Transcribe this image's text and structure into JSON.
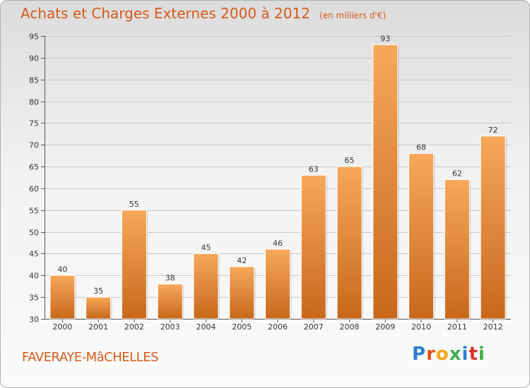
{
  "title": "Achats et Charges Externes 2000 à 2012",
  "subtitle": "(en milliers d'€)",
  "commune": "FAVERAYE-MâCHELLES",
  "logo": {
    "text": "Proxiti",
    "letter_colors": [
      "#2d7fd3",
      "#e8521b",
      "#f3a51b",
      "#3fae49",
      "#2d7fd3",
      "#d9372f",
      "#3fae49"
    ]
  },
  "colors": {
    "bar_top": "#f7a85a",
    "bar_bottom": "#c7681c",
    "title": "#d85a1a",
    "grid": "#c8c8c8"
  },
  "chart_data": {
    "type": "bar",
    "title": "Achats et Charges Externes 2000 à 2012",
    "subtitle": "(en milliers d'€)",
    "categories": [
      "2000",
      "2001",
      "2002",
      "2003",
      "2004",
      "2005",
      "2006",
      "2007",
      "2008",
      "2009",
      "2010",
      "2011",
      "2012"
    ],
    "values": [
      40,
      35,
      55,
      38,
      45,
      42,
      46,
      63,
      65,
      93,
      68,
      62,
      72
    ],
    "xlabel": "",
    "ylabel": "",
    "ylim": [
      30,
      95
    ],
    "yticks": [
      30,
      35,
      40,
      45,
      50,
      55,
      60,
      65,
      70,
      75,
      80,
      85,
      90,
      95
    ],
    "grid": true,
    "data_labels": true
  }
}
